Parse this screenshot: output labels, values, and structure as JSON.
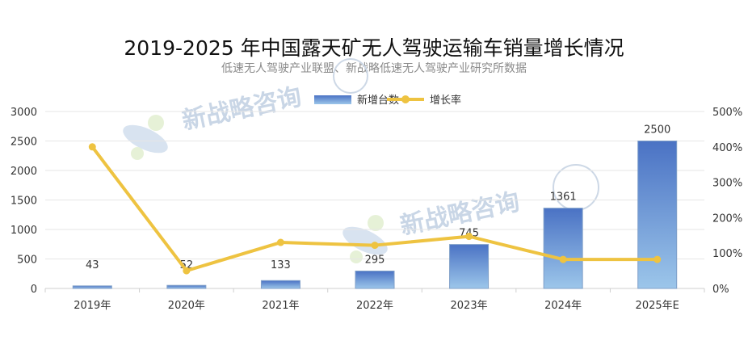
{
  "title": "2019-2025 年中国露天矿无人驾驶运输车销量增长情况",
  "subtitle": "低速无人驾驶产业联盟、新战略低速无人驾驶产业研究所数据",
  "watermark": "新战略咨询",
  "colors": {
    "bar_top": "#4a72c4",
    "bar_bottom": "#9cc6ea",
    "line": "#eec341",
    "grid": "#e6e6e6"
  },
  "chart_data": {
    "type": "bar",
    "categories": [
      "2019年",
      "2020年",
      "2021年",
      "2022年",
      "2023年",
      "2024年",
      "2025年E"
    ],
    "series": [
      {
        "name": "新增台数",
        "type": "bar",
        "axis": "left",
        "values": [
          43,
          52,
          133,
          295,
          745,
          1361,
          2500
        ]
      },
      {
        "name": "增长率",
        "type": "line",
        "axis": "right",
        "values": [
          400,
          50,
          130,
          122,
          147,
          82,
          82
        ]
      }
    ],
    "data_labels": [
      "43",
      "52",
      "133",
      "295",
      "745",
      "1361",
      "2500"
    ],
    "ylim_left": [
      0,
      3000
    ],
    "yticks_left": [
      "0",
      "500",
      "1000",
      "1500",
      "2000",
      "2500",
      "3000"
    ],
    "ylim_right": [
      0,
      500
    ],
    "yticks_right": [
      "0%",
      "100%",
      "200%",
      "300%",
      "400%",
      "500%"
    ],
    "grid": true,
    "legend_position": "top-center"
  }
}
